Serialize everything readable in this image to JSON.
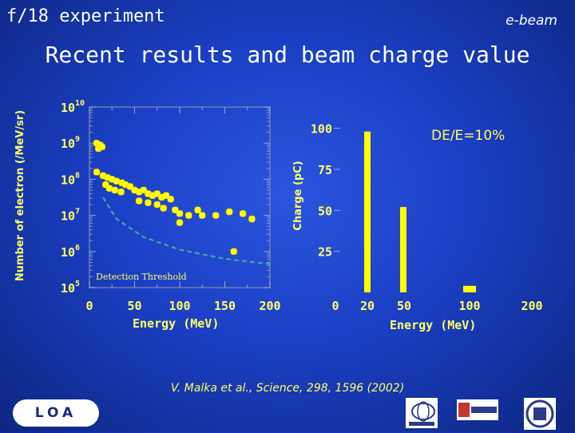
{
  "header": {
    "title": "f/18  experiment",
    "tag": "e-beam"
  },
  "slide_title": "Recent results and beam charge value",
  "citation": "V. Malka et al., Science, 298, 1596 (2002)",
  "footer": {
    "lab_logo": "LOA",
    "logos": [
      "ENSTA",
      "POLYTECHNIQUE",
      "CNRS"
    ]
  },
  "colors": {
    "background": "#1b3fc4",
    "text": "#ffff66",
    "markers": "#ffff00",
    "threshold": "#3fb0a0",
    "white": "#ffffff"
  },
  "chart_data": [
    {
      "type": "scatter",
      "title": "",
      "ylabel": "Number of electron (/MeV/sr)",
      "xlabel": "Energy (MeV)",
      "yscale": "log",
      "xlim": [
        0,
        200
      ],
      "ylim": [
        5,
        10
      ],
      "x_ticks": [
        "0",
        "50",
        "100",
        "150",
        "200"
      ],
      "y_ticks": [
        {
          "base": "10",
          "exp": "5"
        },
        {
          "base": "10",
          "exp": "6"
        },
        {
          "base": "10",
          "exp": "7"
        },
        {
          "base": "10",
          "exp": "8"
        },
        {
          "base": "10",
          "exp": "9"
        },
        {
          "base": "10",
          "exp": "10"
        }
      ],
      "series": [
        {
          "values": [
            [
              8,
              9.0
            ],
            [
              10,
              8.85
            ],
            [
              12,
              8.95
            ],
            [
              14,
              8.9
            ],
            [
              8,
              8.2
            ],
            [
              15,
              8.1
            ],
            [
              20,
              8.05
            ],
            [
              25,
              8.0
            ],
            [
              30,
              7.95
            ],
            [
              36,
              7.9
            ],
            [
              40,
              7.85
            ],
            [
              18,
              7.85
            ],
            [
              22,
              7.75
            ],
            [
              28,
              7.7
            ],
            [
              35,
              7.65
            ],
            [
              45,
              7.8
            ],
            [
              50,
              7.7
            ],
            [
              55,
              7.65
            ],
            [
              60,
              7.7
            ],
            [
              65,
              7.6
            ],
            [
              70,
              7.55
            ],
            [
              75,
              7.6
            ],
            [
              80,
              7.5
            ],
            [
              85,
              7.55
            ],
            [
              90,
              7.45
            ],
            [
              55,
              7.4
            ],
            [
              65,
              7.35
            ],
            [
              75,
              7.3
            ],
            [
              82,
              7.2
            ],
            [
              95,
              7.15
            ],
            [
              100,
              7.05
            ],
            [
              110,
              7.0
            ],
            [
              120,
              7.15
            ],
            [
              125,
              7.0
            ],
            [
              140,
              7.0
            ],
            [
              155,
              7.1
            ],
            [
              170,
              7.05
            ],
            [
              180,
              6.9
            ],
            [
              100,
              6.8
            ],
            [
              160,
              6.0
            ]
          ]
        }
      ],
      "threshold_curve": {
        "label": "Detection Threshold",
        "values": [
          [
            15,
            7.5
          ],
          [
            30,
            6.9
          ],
          [
            60,
            6.4
          ],
          [
            100,
            6.05
          ],
          [
            150,
            5.8
          ],
          [
            200,
            5.65
          ]
        ]
      }
    },
    {
      "type": "bar",
      "title": "",
      "annotation": "DE/E=10%",
      "ylabel": "Charge (pC)",
      "xlabel": "Energy (MeV)",
      "xlim": [
        0,
        200
      ],
      "ylim": [
        0,
        110
      ],
      "x_ticks": [
        "0",
        "20",
        "50",
        "100",
        "200"
      ],
      "y_ticks": [
        "25",
        "50",
        "75",
        "100"
      ],
      "bars": [
        {
          "x": 20,
          "value": 98
        },
        {
          "x": 50,
          "value": 52
        },
        {
          "x": 100,
          "value": 4
        }
      ]
    }
  ]
}
